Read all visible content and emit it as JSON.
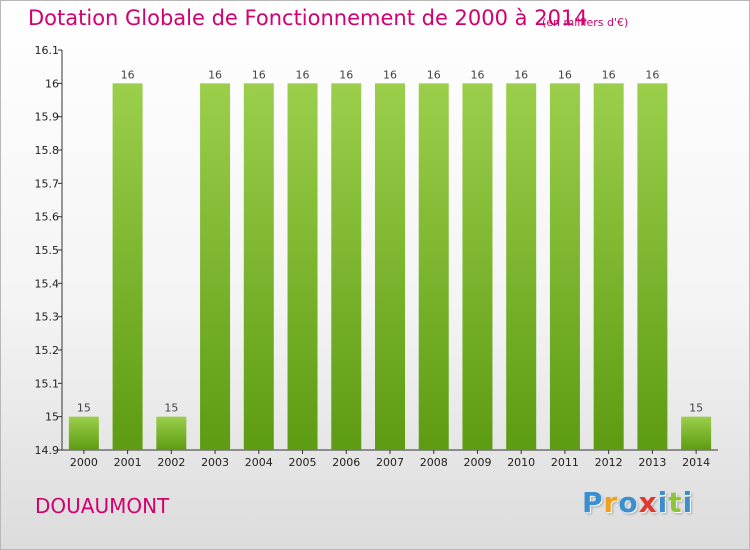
{
  "chart_data": {
    "type": "bar",
    "title": "Dotation Globale de Fonctionnement de 2000 à 2014",
    "subtitle": "(en milliers d'€)",
    "xlabel": "",
    "ylabel": "",
    "categories": [
      "2000",
      "2001",
      "2002",
      "2003",
      "2004",
      "2005",
      "2006",
      "2007",
      "2008",
      "2009",
      "2010",
      "2011",
      "2012",
      "2013",
      "2014"
    ],
    "values": [
      15,
      16,
      15,
      16,
      16,
      16,
      16,
      16,
      16,
      16,
      16,
      16,
      16,
      16,
      15
    ],
    "data_labels": [
      "15",
      "16",
      "15",
      "16",
      "16",
      "16",
      "16",
      "16",
      "16",
      "16",
      "16",
      "16",
      "16",
      "16",
      "15"
    ],
    "ylim": [
      14.9,
      16.1
    ],
    "yticks": [
      14.9,
      15,
      15.1,
      15.2,
      15.3,
      15.4,
      15.5,
      15.6,
      15.7,
      15.8,
      15.9,
      16,
      16.1
    ],
    "ytick_labels": [
      "14.9",
      "15",
      "15.1",
      "15.2",
      "15.3",
      "15.4",
      "15.5",
      "15.6",
      "15.7",
      "15.8",
      "15.9",
      "16",
      "16.1"
    ],
    "grid": false,
    "bar_color_top": "#9bcf4b",
    "bar_color_bottom": "#5d9b12"
  },
  "place_name": "DOUAUMONT",
  "logo": {
    "letters": [
      "P",
      "r",
      "o",
      "x",
      "i",
      "t",
      "i"
    ],
    "colors": [
      "#3a8fd0",
      "#f0a020",
      "#3a8fd0",
      "#e03a30",
      "#3a8fd0",
      "#8cc43c",
      "#3a8fd0"
    ]
  },
  "colors": {
    "accent": "#d4006e",
    "axis": "#333333"
  }
}
